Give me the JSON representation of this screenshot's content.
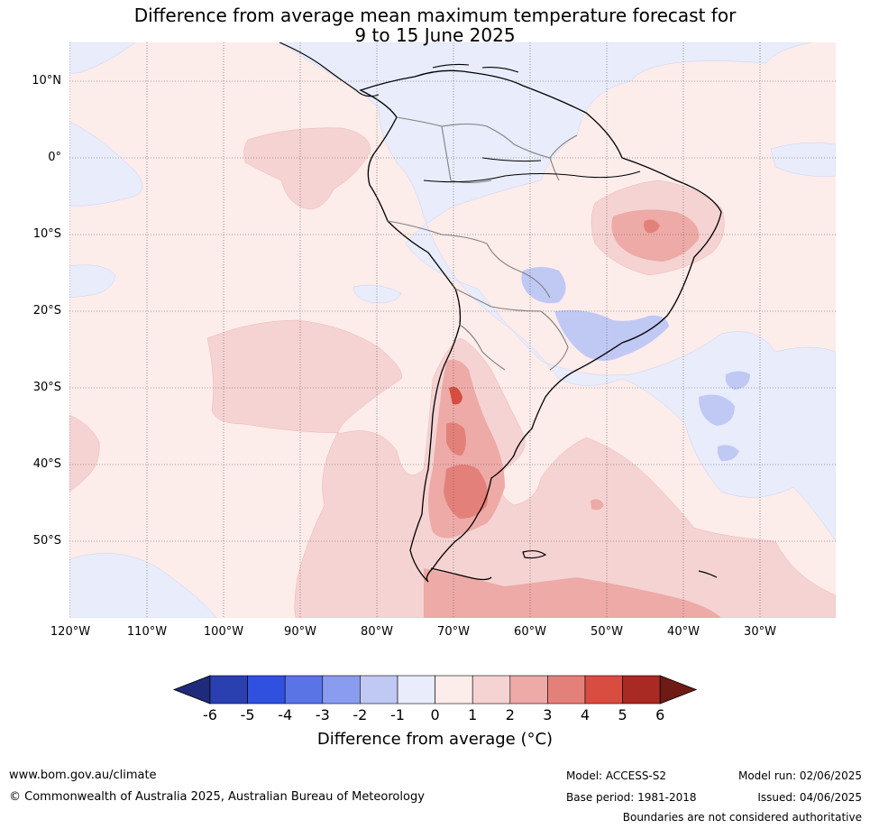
{
  "title_line1": "Difference from average mean maximum temperature forecast for",
  "title_line2": "9 to 15 June 2025",
  "lat_labels": [
    "10°N",
    "0°",
    "10°S",
    "20°S",
    "30°S",
    "40°S",
    "50°S"
  ],
  "lon_labels": [
    "120°W",
    "110°W",
    "100°W",
    "90°W",
    "80°W",
    "70°W",
    "60°W",
    "50°W",
    "40°W",
    "30°W"
  ],
  "colorbar": {
    "label": "Difference from average ($^\\circ$C)",
    "label_display": "Difference from average (°C)",
    "ticks": [
      "-6",
      "-5",
      "-4",
      "-3",
      "-2",
      "-1",
      "0",
      "1",
      "2",
      "3",
      "4",
      "5",
      "6"
    ],
    "colors": [
      "#1f2b7a",
      "#2a3fb0",
      "#3050e0",
      "#5a74e8",
      "#8a9cf0",
      "#c0c8f4",
      "#e8ecfb",
      "#fcecea",
      "#f5d3d2",
      "#edaaa7",
      "#e4807a",
      "#d84d40",
      "#a82a22",
      "#701a16"
    ]
  },
  "footer": {
    "url": "www.bom.gov.au/climate",
    "copyright": "© Commonwealth of Australia 2025, Australian Bureau of Meteorology",
    "model": "Model: ACCESS-S2",
    "base_period": "Base period: 1981-2018",
    "model_run": "Model run: 02/06/2025",
    "issued": "Issued: 04/06/2025",
    "boundaries": "Boundaries are not considered authoritative"
  }
}
